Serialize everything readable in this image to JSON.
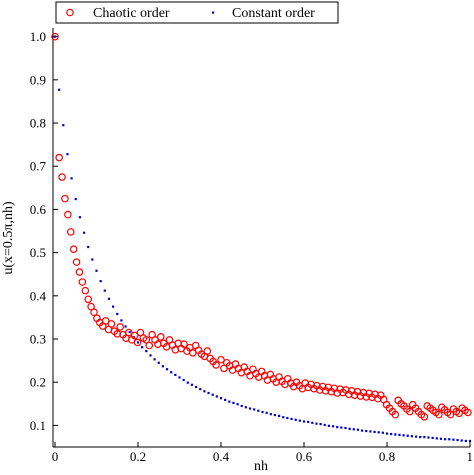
{
  "chart_data": {
    "type": "scatter",
    "xlabel": "nh",
    "ylabel": "u(x=0.5π,nh)",
    "xlim": [
      0,
      1
    ],
    "ylim": [
      0.05,
      1.02
    ],
    "x_ticks": [
      0,
      0.2,
      0.4,
      0.6,
      0.8,
      1
    ],
    "x_tick_labels": [
      "0",
      "0.2",
      "0.4",
      "0.6",
      "0.8",
      "1"
    ],
    "y_ticks": [
      0.1,
      0.2,
      0.3,
      0.4,
      0.5,
      0.6,
      0.7,
      0.8,
      0.9,
      1.0
    ],
    "y_tick_labels": [
      "0.1",
      "0.2",
      "0.3",
      "0.4",
      "0.5",
      "0.6",
      "0.7",
      "0.8",
      "0.9",
      "1.0"
    ],
    "grid": false,
    "legend_position": "top",
    "series": [
      {
        "name": "Chaotic order",
        "marker": "open-circle",
        "color": "#ff0000",
        "points": [
          [
            0.0,
            1.0
          ],
          [
            0.01,
            0.72
          ],
          [
            0.017,
            0.675
          ],
          [
            0.024,
            0.625
          ],
          [
            0.031,
            0.588
          ],
          [
            0.038,
            0.548
          ],
          [
            0.045,
            0.508
          ],
          [
            0.052,
            0.478
          ],
          [
            0.059,
            0.455
          ],
          [
            0.066,
            0.432
          ],
          [
            0.073,
            0.412
          ],
          [
            0.08,
            0.392
          ],
          [
            0.087,
            0.375
          ],
          [
            0.094,
            0.362
          ],
          [
            0.101,
            0.348
          ],
          [
            0.108,
            0.338
          ],
          [
            0.115,
            0.33
          ],
          [
            0.122,
            0.342
          ],
          [
            0.129,
            0.322
          ],
          [
            0.136,
            0.335
          ],
          [
            0.143,
            0.318
          ],
          [
            0.15,
            0.312
          ],
          [
            0.157,
            0.328
          ],
          [
            0.164,
            0.31
          ],
          [
            0.171,
            0.302
          ],
          [
            0.178,
            0.315
          ],
          [
            0.185,
            0.298
          ],
          [
            0.192,
            0.308
          ],
          [
            0.199,
            0.292
          ],
          [
            0.206,
            0.315
          ],
          [
            0.213,
            0.302
          ],
          [
            0.22,
            0.298
          ],
          [
            0.227,
            0.285
          ],
          [
            0.234,
            0.31
          ],
          [
            0.241,
            0.298
          ],
          [
            0.248,
            0.288
          ],
          [
            0.255,
            0.305
          ],
          [
            0.262,
            0.29
          ],
          [
            0.269,
            0.282
          ],
          [
            0.276,
            0.298
          ],
          [
            0.283,
            0.286
          ],
          [
            0.29,
            0.275
          ],
          [
            0.297,
            0.29
          ],
          [
            0.304,
            0.278
          ],
          [
            0.311,
            0.288
          ],
          [
            0.318,
            0.272
          ],
          [
            0.325,
            0.28
          ],
          [
            0.332,
            0.268
          ],
          [
            0.339,
            0.285
          ],
          [
            0.346,
            0.274
          ],
          [
            0.353,
            0.265
          ],
          [
            0.36,
            0.26
          ],
          [
            0.367,
            0.272
          ],
          [
            0.374,
            0.255
          ],
          [
            0.381,
            0.248
          ],
          [
            0.388,
            0.24
          ],
          [
            0.4,
            0.252
          ],
          [
            0.407,
            0.232
          ],
          [
            0.414,
            0.245
          ],
          [
            0.421,
            0.238
          ],
          [
            0.428,
            0.228
          ],
          [
            0.435,
            0.242
          ],
          [
            0.442,
            0.232
          ],
          [
            0.449,
            0.222
          ],
          [
            0.456,
            0.235
          ],
          [
            0.463,
            0.225
          ],
          [
            0.47,
            0.215
          ],
          [
            0.477,
            0.23
          ],
          [
            0.484,
            0.22
          ],
          [
            0.491,
            0.212
          ],
          [
            0.498,
            0.225
          ],
          [
            0.505,
            0.215
          ],
          [
            0.512,
            0.205
          ],
          [
            0.519,
            0.218
          ],
          [
            0.526,
            0.208
          ],
          [
            0.533,
            0.2
          ],
          [
            0.54,
            0.212
          ],
          [
            0.547,
            0.202
          ],
          [
            0.554,
            0.195
          ],
          [
            0.561,
            0.208
          ],
          [
            0.568,
            0.198
          ],
          [
            0.575,
            0.19
          ],
          [
            0.582,
            0.2
          ],
          [
            0.589,
            0.192
          ],
          [
            0.596,
            0.185
          ],
          [
            0.603,
            0.198
          ],
          [
            0.61,
            0.188
          ],
          [
            0.617,
            0.195
          ],
          [
            0.624,
            0.185
          ],
          [
            0.631,
            0.192
          ],
          [
            0.638,
            0.182
          ],
          [
            0.645,
            0.19
          ],
          [
            0.652,
            0.18
          ],
          [
            0.659,
            0.188
          ],
          [
            0.666,
            0.178
          ],
          [
            0.673,
            0.186
          ],
          [
            0.68,
            0.175
          ],
          [
            0.687,
            0.184
          ],
          [
            0.694,
            0.176
          ],
          [
            0.701,
            0.182
          ],
          [
            0.708,
            0.172
          ],
          [
            0.715,
            0.18
          ],
          [
            0.722,
            0.17
          ],
          [
            0.729,
            0.178
          ],
          [
            0.736,
            0.168
          ],
          [
            0.743,
            0.176
          ],
          [
            0.75,
            0.166
          ],
          [
            0.757,
            0.174
          ],
          [
            0.764,
            0.165
          ],
          [
            0.771,
            0.172
          ],
          [
            0.778,
            0.162
          ],
          [
            0.785,
            0.17
          ],
          [
            0.792,
            0.16
          ],
          [
            0.799,
            0.148
          ],
          [
            0.806,
            0.14
          ],
          [
            0.813,
            0.132
          ],
          [
            0.82,
            0.125
          ],
          [
            0.827,
            0.158
          ],
          [
            0.834,
            0.15
          ],
          [
            0.841,
            0.145
          ],
          [
            0.848,
            0.138
          ],
          [
            0.855,
            0.132
          ],
          [
            0.862,
            0.148
          ],
          [
            0.869,
            0.14
          ],
          [
            0.876,
            0.132
          ],
          [
            0.883,
            0.125
          ],
          [
            0.89,
            0.12
          ],
          [
            0.897,
            0.145
          ],
          [
            0.904,
            0.14
          ],
          [
            0.911,
            0.135
          ],
          [
            0.918,
            0.13
          ],
          [
            0.925,
            0.125
          ],
          [
            0.932,
            0.142
          ],
          [
            0.939,
            0.136
          ],
          [
            0.946,
            0.13
          ],
          [
            0.953,
            0.125
          ],
          [
            0.96,
            0.138
          ],
          [
            0.967,
            0.132
          ],
          [
            0.974,
            0.128
          ],
          [
            0.981,
            0.14
          ],
          [
            0.988,
            0.135
          ],
          [
            0.995,
            0.13
          ]
        ]
      },
      {
        "name": "Constant order",
        "marker": "dot",
        "color": "#0000cc",
        "points": [
          [
            0.0,
            1.0
          ],
          [
            0.01,
            0.877
          ],
          [
            0.02,
            0.795
          ],
          [
            0.03,
            0.728
          ],
          [
            0.04,
            0.672
          ],
          [
            0.05,
            0.624
          ],
          [
            0.06,
            0.582
          ],
          [
            0.07,
            0.546
          ],
          [
            0.08,
            0.513
          ],
          [
            0.09,
            0.484
          ],
          [
            0.1,
            0.458
          ],
          [
            0.11,
            0.434
          ],
          [
            0.12,
            0.412
          ],
          [
            0.13,
            0.393
          ],
          [
            0.14,
            0.375
          ],
          [
            0.15,
            0.358
          ],
          [
            0.16,
            0.343
          ],
          [
            0.17,
            0.329
          ],
          [
            0.18,
            0.316
          ],
          [
            0.19,
            0.304
          ],
          [
            0.2,
            0.292
          ],
          [
            0.21,
            0.281
          ],
          [
            0.22,
            0.272
          ],
          [
            0.23,
            0.262
          ],
          [
            0.24,
            0.253
          ],
          [
            0.25,
            0.245
          ],
          [
            0.26,
            0.237
          ],
          [
            0.27,
            0.23
          ],
          [
            0.28,
            0.223
          ],
          [
            0.29,
            0.217
          ],
          [
            0.3,
            0.211
          ],
          [
            0.31,
            0.205
          ],
          [
            0.32,
            0.199
          ],
          [
            0.33,
            0.194
          ],
          [
            0.34,
            0.189
          ],
          [
            0.35,
            0.184
          ],
          [
            0.36,
            0.179
          ],
          [
            0.37,
            0.175
          ],
          [
            0.38,
            0.171
          ],
          [
            0.39,
            0.167
          ],
          [
            0.4,
            0.163
          ],
          [
            0.41,
            0.159
          ],
          [
            0.42,
            0.155
          ],
          [
            0.43,
            0.152
          ],
          [
            0.44,
            0.149
          ],
          [
            0.45,
            0.145
          ],
          [
            0.46,
            0.142
          ],
          [
            0.47,
            0.139
          ],
          [
            0.48,
            0.137
          ],
          [
            0.49,
            0.134
          ],
          [
            0.5,
            0.131
          ],
          [
            0.51,
            0.129
          ],
          [
            0.52,
            0.126
          ],
          [
            0.53,
            0.124
          ],
          [
            0.54,
            0.122
          ],
          [
            0.55,
            0.119
          ],
          [
            0.56,
            0.117
          ],
          [
            0.57,
            0.115
          ],
          [
            0.58,
            0.113
          ],
          [
            0.59,
            0.111
          ],
          [
            0.6,
            0.109
          ],
          [
            0.61,
            0.108
          ],
          [
            0.62,
            0.106
          ],
          [
            0.63,
            0.104
          ],
          [
            0.64,
            0.103
          ],
          [
            0.65,
            0.101
          ],
          [
            0.66,
            0.099
          ],
          [
            0.67,
            0.098
          ],
          [
            0.68,
            0.096
          ],
          [
            0.69,
            0.095
          ],
          [
            0.7,
            0.094
          ],
          [
            0.71,
            0.092
          ],
          [
            0.72,
            0.091
          ],
          [
            0.73,
            0.09
          ],
          [
            0.74,
            0.088
          ],
          [
            0.75,
            0.087
          ],
          [
            0.76,
            0.086
          ],
          [
            0.77,
            0.085
          ],
          [
            0.78,
            0.084
          ],
          [
            0.79,
            0.083
          ],
          [
            0.8,
            0.081
          ],
          [
            0.81,
            0.08
          ],
          [
            0.82,
            0.079
          ],
          [
            0.83,
            0.078
          ],
          [
            0.84,
            0.077
          ],
          [
            0.85,
            0.076
          ],
          [
            0.86,
            0.075
          ],
          [
            0.87,
            0.074
          ],
          [
            0.88,
            0.073
          ],
          [
            0.89,
            0.073
          ],
          [
            0.9,
            0.072
          ],
          [
            0.91,
            0.071
          ],
          [
            0.92,
            0.07
          ],
          [
            0.93,
            0.069
          ],
          [
            0.94,
            0.068
          ],
          [
            0.95,
            0.068
          ],
          [
            0.96,
            0.067
          ],
          [
            0.97,
            0.066
          ],
          [
            0.98,
            0.065
          ],
          [
            0.99,
            0.064
          ],
          [
            1.0,
            0.064
          ]
        ]
      }
    ]
  }
}
